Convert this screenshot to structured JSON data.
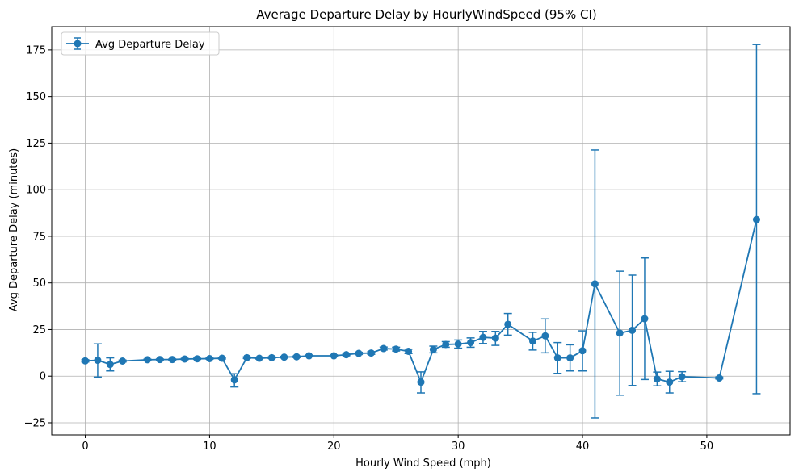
{
  "chart_data": {
    "type": "line",
    "title": "Average Departure Delay by HourlyWindSpeed (95% CI)",
    "xlabel": "Hourly Wind Speed (mph)",
    "ylabel": "Avg Departure Delay (minutes)",
    "xlim": [
      -2.7,
      56.7
    ],
    "ylim": [
      -31.5,
      187.5
    ],
    "xticks": [
      0,
      10,
      20,
      30,
      40,
      50
    ],
    "yticks": [
      -25,
      0,
      25,
      50,
      75,
      100,
      125,
      150,
      175
    ],
    "grid": true,
    "legend_position": "top-left",
    "series": [
      {
        "name": "Avg Departure Delay",
        "color": "#1f77b4",
        "marker": "circle",
        "error_bars": "95% CI",
        "points": [
          {
            "x": 0,
            "y": 8.2,
            "lo": 7.6,
            "hi": 8.8
          },
          {
            "x": 1,
            "y": 8.5,
            "lo": -0.5,
            "hi": 17.3
          },
          {
            "x": 2,
            "y": 6.3,
            "lo": 2.8,
            "hi": 9.8
          },
          {
            "x": 3,
            "y": 8.1,
            "lo": 7.6,
            "hi": 8.6
          },
          {
            "x": 5,
            "y": 8.8,
            "lo": 8.5,
            "hi": 9.1
          },
          {
            "x": 6,
            "y": 8.9,
            "lo": 8.6,
            "hi": 9.2
          },
          {
            "x": 7,
            "y": 8.9,
            "lo": 8.6,
            "hi": 9.2
          },
          {
            "x": 8,
            "y": 9.2,
            "lo": 8.9,
            "hi": 9.5
          },
          {
            "x": 9,
            "y": 9.3,
            "lo": 9.0,
            "hi": 9.6
          },
          {
            "x": 10,
            "y": 9.4,
            "lo": 9.1,
            "hi": 9.7
          },
          {
            "x": 11,
            "y": 9.6,
            "lo": 9.2,
            "hi": 10.0
          },
          {
            "x": 12,
            "y": -2.0,
            "lo": -5.8,
            "hi": 1.3
          },
          {
            "x": 13,
            "y": 9.9,
            "lo": 9.5,
            "hi": 10.3
          },
          {
            "x": 14,
            "y": 9.6,
            "lo": 9.2,
            "hi": 10.0
          },
          {
            "x": 15,
            "y": 9.9,
            "lo": 9.5,
            "hi": 10.3
          },
          {
            "x": 16,
            "y": 10.2,
            "lo": 9.8,
            "hi": 10.6
          },
          {
            "x": 17,
            "y": 10.4,
            "lo": 10.0,
            "hi": 10.8
          },
          {
            "x": 18,
            "y": 10.9,
            "lo": 10.5,
            "hi": 11.3
          },
          {
            "x": 20,
            "y": 10.9,
            "lo": 10.4,
            "hi": 11.4
          },
          {
            "x": 21,
            "y": 11.5,
            "lo": 11.0,
            "hi": 12.0
          },
          {
            "x": 22,
            "y": 12.2,
            "lo": 11.6,
            "hi": 12.8
          },
          {
            "x": 23,
            "y": 12.4,
            "lo": 11.7,
            "hi": 13.1
          },
          {
            "x": 24,
            "y": 14.8,
            "lo": 14.0,
            "hi": 15.6
          },
          {
            "x": 25,
            "y": 14.5,
            "lo": 13.5,
            "hi": 15.5
          },
          {
            "x": 26,
            "y": 13.3,
            "lo": 12.1,
            "hi": 14.5
          },
          {
            "x": 27,
            "y": -3.2,
            "lo": -9.0,
            "hi": 2.3
          },
          {
            "x": 28,
            "y": 14.3,
            "lo": 12.5,
            "hi": 16.1
          },
          {
            "x": 29,
            "y": 17.0,
            "lo": 15.5,
            "hi": 18.5
          },
          {
            "x": 30,
            "y": 17.2,
            "lo": 15.0,
            "hi": 19.4
          },
          {
            "x": 31,
            "y": 18.0,
            "lo": 15.5,
            "hi": 20.5
          },
          {
            "x": 32,
            "y": 20.8,
            "lo": 17.5,
            "hi": 24.0
          },
          {
            "x": 33,
            "y": 20.4,
            "lo": 16.5,
            "hi": 24.0
          },
          {
            "x": 34,
            "y": 27.8,
            "lo": 22.0,
            "hi": 33.6
          },
          {
            "x": 36,
            "y": 18.8,
            "lo": 14.0,
            "hi": 23.5
          },
          {
            "x": 37,
            "y": 21.6,
            "lo": 12.5,
            "hi": 30.7
          },
          {
            "x": 38,
            "y": 9.8,
            "lo": 1.5,
            "hi": 18.0
          },
          {
            "x": 39,
            "y": 9.8,
            "lo": 2.8,
            "hi": 16.8
          },
          {
            "x": 40,
            "y": 13.6,
            "lo": 2.8,
            "hi": 24.3
          },
          {
            "x": 41,
            "y": 49.5,
            "lo": -22.4,
            "hi": 121.3
          },
          {
            "x": 43,
            "y": 23.1,
            "lo": -10.2,
            "hi": 56.3
          },
          {
            "x": 44,
            "y": 24.6,
            "lo": -5.0,
            "hi": 54.2
          },
          {
            "x": 45,
            "y": 30.8,
            "lo": -1.8,
            "hi": 63.4
          },
          {
            "x": 46,
            "y": -1.5,
            "lo": -5.2,
            "hi": 2.2
          },
          {
            "x": 47,
            "y": -3.2,
            "lo": -9.0,
            "hi": 2.6
          },
          {
            "x": 48,
            "y": -0.3,
            "lo": -3.0,
            "hi": 2.4
          },
          {
            "x": 51,
            "y": -1.0,
            "lo": -1.5,
            "hi": -0.5
          },
          {
            "x": 54,
            "y": 84.0,
            "lo": -9.4,
            "hi": 177.9
          }
        ]
      }
    ]
  }
}
